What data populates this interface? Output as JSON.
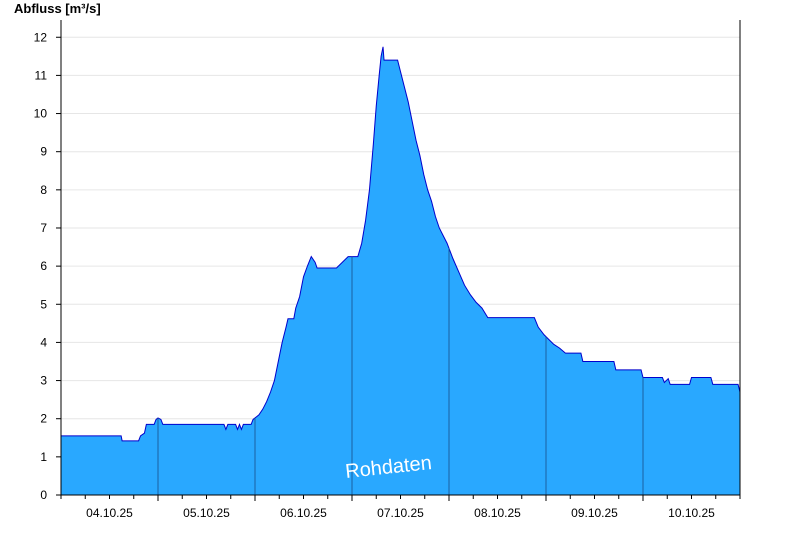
{
  "chart_data": {
    "type": "area",
    "ylabel": "Abfluss [m³/s]",
    "watermark": "Rohdaten",
    "ylim": [
      0,
      12.4
    ],
    "yticks": [
      0,
      1,
      2,
      3,
      4,
      5,
      6,
      7,
      8,
      9,
      10,
      11,
      12
    ],
    "xlim": [
      0,
      7
    ],
    "x_unit": "days since 03.10.25 14:00",
    "xtick_labels": [
      "04.10.25",
      "05.10.25",
      "06.10.25",
      "07.10.25",
      "08.10.25",
      "09.10.25",
      "10.10.25"
    ],
    "day_boundaries": [
      1,
      2,
      3,
      4,
      5,
      6
    ],
    "grid": true,
    "legend": "none",
    "colors": {
      "fill": "#29a8ff",
      "line": "#0000cc",
      "divider": "#1a5fa0",
      "grid": "#e6e6e6"
    },
    "series": [
      {
        "values": [
          [
            0.0,
            1.55
          ],
          [
            0.62,
            1.55
          ],
          [
            0.63,
            1.42
          ],
          [
            0.8,
            1.42
          ],
          [
            0.82,
            1.55
          ],
          [
            0.86,
            1.62
          ],
          [
            0.88,
            1.85
          ],
          [
            0.96,
            1.85
          ],
          [
            0.98,
            1.98
          ],
          [
            1.0,
            2.02
          ],
          [
            1.03,
            1.98
          ],
          [
            1.05,
            1.85
          ],
          [
            1.68,
            1.85
          ],
          [
            1.7,
            1.72
          ],
          [
            1.72,
            1.85
          ],
          [
            1.8,
            1.85
          ],
          [
            1.82,
            1.72
          ],
          [
            1.84,
            1.85
          ],
          [
            1.86,
            1.72
          ],
          [
            1.88,
            1.85
          ],
          [
            1.96,
            1.85
          ],
          [
            1.98,
            1.98
          ],
          [
            2.04,
            2.1
          ],
          [
            2.08,
            2.25
          ],
          [
            2.12,
            2.45
          ],
          [
            2.16,
            2.7
          ],
          [
            2.2,
            3.0
          ],
          [
            2.24,
            3.5
          ],
          [
            2.28,
            4.0
          ],
          [
            2.32,
            4.4
          ],
          [
            2.34,
            4.62
          ],
          [
            2.4,
            4.62
          ],
          [
            2.42,
            4.9
          ],
          [
            2.46,
            5.2
          ],
          [
            2.5,
            5.72
          ],
          [
            2.54,
            6.0
          ],
          [
            2.58,
            6.25
          ],
          [
            2.62,
            6.1
          ],
          [
            2.64,
            5.95
          ],
          [
            2.84,
            5.95
          ],
          [
            2.96,
            6.25
          ],
          [
            3.06,
            6.25
          ],
          [
            3.1,
            6.6
          ],
          [
            3.14,
            7.2
          ],
          [
            3.18,
            8.0
          ],
          [
            3.22,
            9.2
          ],
          [
            3.25,
            10.2
          ],
          [
            3.28,
            11.0
          ],
          [
            3.3,
            11.5
          ],
          [
            3.32,
            11.75
          ],
          [
            3.33,
            11.4
          ],
          [
            3.47,
            11.4
          ],
          [
            3.5,
            11.1
          ],
          [
            3.54,
            10.7
          ],
          [
            3.58,
            10.3
          ],
          [
            3.62,
            9.8
          ],
          [
            3.66,
            9.3
          ],
          [
            3.7,
            8.9
          ],
          [
            3.74,
            8.4
          ],
          [
            3.78,
            8.0
          ],
          [
            3.82,
            7.7
          ],
          [
            3.86,
            7.3
          ],
          [
            3.9,
            7.0
          ],
          [
            3.94,
            6.8
          ],
          [
            3.98,
            6.6
          ],
          [
            4.04,
            6.2
          ],
          [
            4.1,
            5.85
          ],
          [
            4.16,
            5.5
          ],
          [
            4.22,
            5.25
          ],
          [
            4.28,
            5.05
          ],
          [
            4.34,
            4.9
          ],
          [
            4.4,
            4.65
          ],
          [
            4.88,
            4.65
          ],
          [
            4.92,
            4.4
          ],
          [
            4.98,
            4.2
          ],
          [
            5.02,
            4.1
          ],
          [
            5.08,
            3.95
          ],
          [
            5.14,
            3.85
          ],
          [
            5.2,
            3.72
          ],
          [
            5.36,
            3.72
          ],
          [
            5.38,
            3.5
          ],
          [
            5.7,
            3.5
          ],
          [
            5.72,
            3.28
          ],
          [
            5.98,
            3.28
          ],
          [
            6.0,
            3.08
          ],
          [
            6.2,
            3.08
          ],
          [
            6.22,
            2.95
          ],
          [
            6.26,
            3.05
          ],
          [
            6.28,
            2.9
          ],
          [
            6.48,
            2.9
          ],
          [
            6.5,
            3.08
          ],
          [
            6.7,
            3.08
          ],
          [
            6.72,
            2.9
          ],
          [
            6.98,
            2.9
          ],
          [
            7.0,
            2.7
          ]
        ]
      }
    ]
  }
}
